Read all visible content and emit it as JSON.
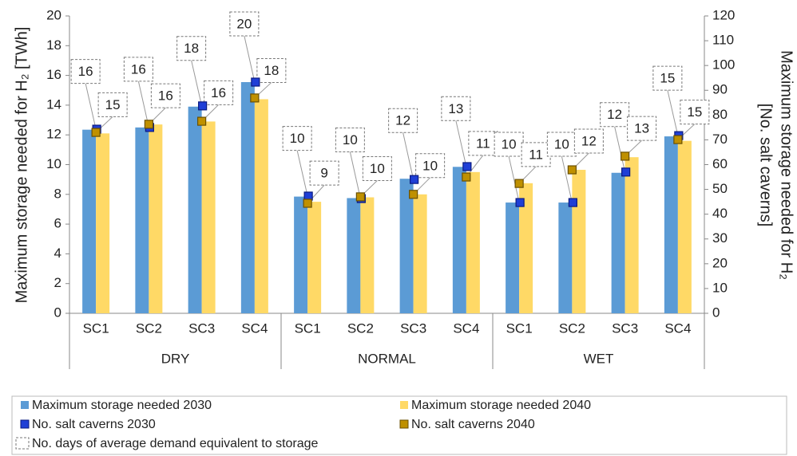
{
  "chart_data": {
    "type": "bar",
    "ylabel": "Maximum storage needed for H₂ [TWh]",
    "y2label": [
      "Maximum storage needed for H₂",
      "[No. salt  caverns]"
    ],
    "categories": [
      "SC1",
      "SC2",
      "SC3",
      "SC4",
      "SC1",
      "SC2",
      "SC3",
      "SC4",
      "SC1",
      "SC2",
      "SC3",
      "SC4"
    ],
    "groups": [
      "DRY",
      "NORMAL",
      "WET"
    ],
    "ylim": [
      0,
      20
    ],
    "yticks": [
      0,
      2,
      4,
      6,
      8,
      10,
      12,
      14,
      16,
      18,
      20
    ],
    "y2lim": [
      0,
      120
    ],
    "y2ticks": [
      0,
      10,
      20,
      30,
      40,
      50,
      60,
      70,
      80,
      90,
      100,
      110,
      120
    ],
    "series": [
      {
        "name": "Maximum storage needed 2030",
        "kind": "bar",
        "color": "#5b9bd5",
        "values": [
          12.35,
          12.5,
          13.9,
          15.55,
          7.85,
          7.75,
          9.05,
          9.85,
          7.45,
          7.45,
          9.45,
          11.9
        ],
        "days": [
          16,
          16,
          18,
          20,
          10,
          10,
          12,
          13,
          10,
          10,
          12,
          15
        ]
      },
      {
        "name": "Maximum storage needed 2040",
        "kind": "bar",
        "color": "#ffd966",
        "values": [
          12.1,
          12.7,
          12.9,
          14.4,
          7.5,
          7.8,
          8.0,
          9.5,
          8.75,
          9.65,
          10.5,
          11.6
        ],
        "days": [
          15,
          16,
          16,
          18,
          9,
          10,
          10,
          11,
          11,
          12,
          13,
          15
        ]
      },
      {
        "name": "No. salt caverns  2030",
        "kind": "marker",
        "axis": "y2",
        "color": "#1f3fd6",
        "values": [
          74.3,
          75,
          83.7,
          93.3,
          47.3,
          46.3,
          54,
          59.2,
          44.7,
          44.7,
          57,
          71.7
        ]
      },
      {
        "name": "No. salt caverns  2040",
        "kind": "marker",
        "axis": "y2",
        "color": "#bf9000",
        "values": [
          73,
          76.3,
          77.5,
          86.9,
          44.4,
          47,
          48,
          55,
          52.4,
          57.9,
          63.4,
          70.1
        ]
      }
    ],
    "days_legend": "No. days of average demand equivalent to storage"
  }
}
